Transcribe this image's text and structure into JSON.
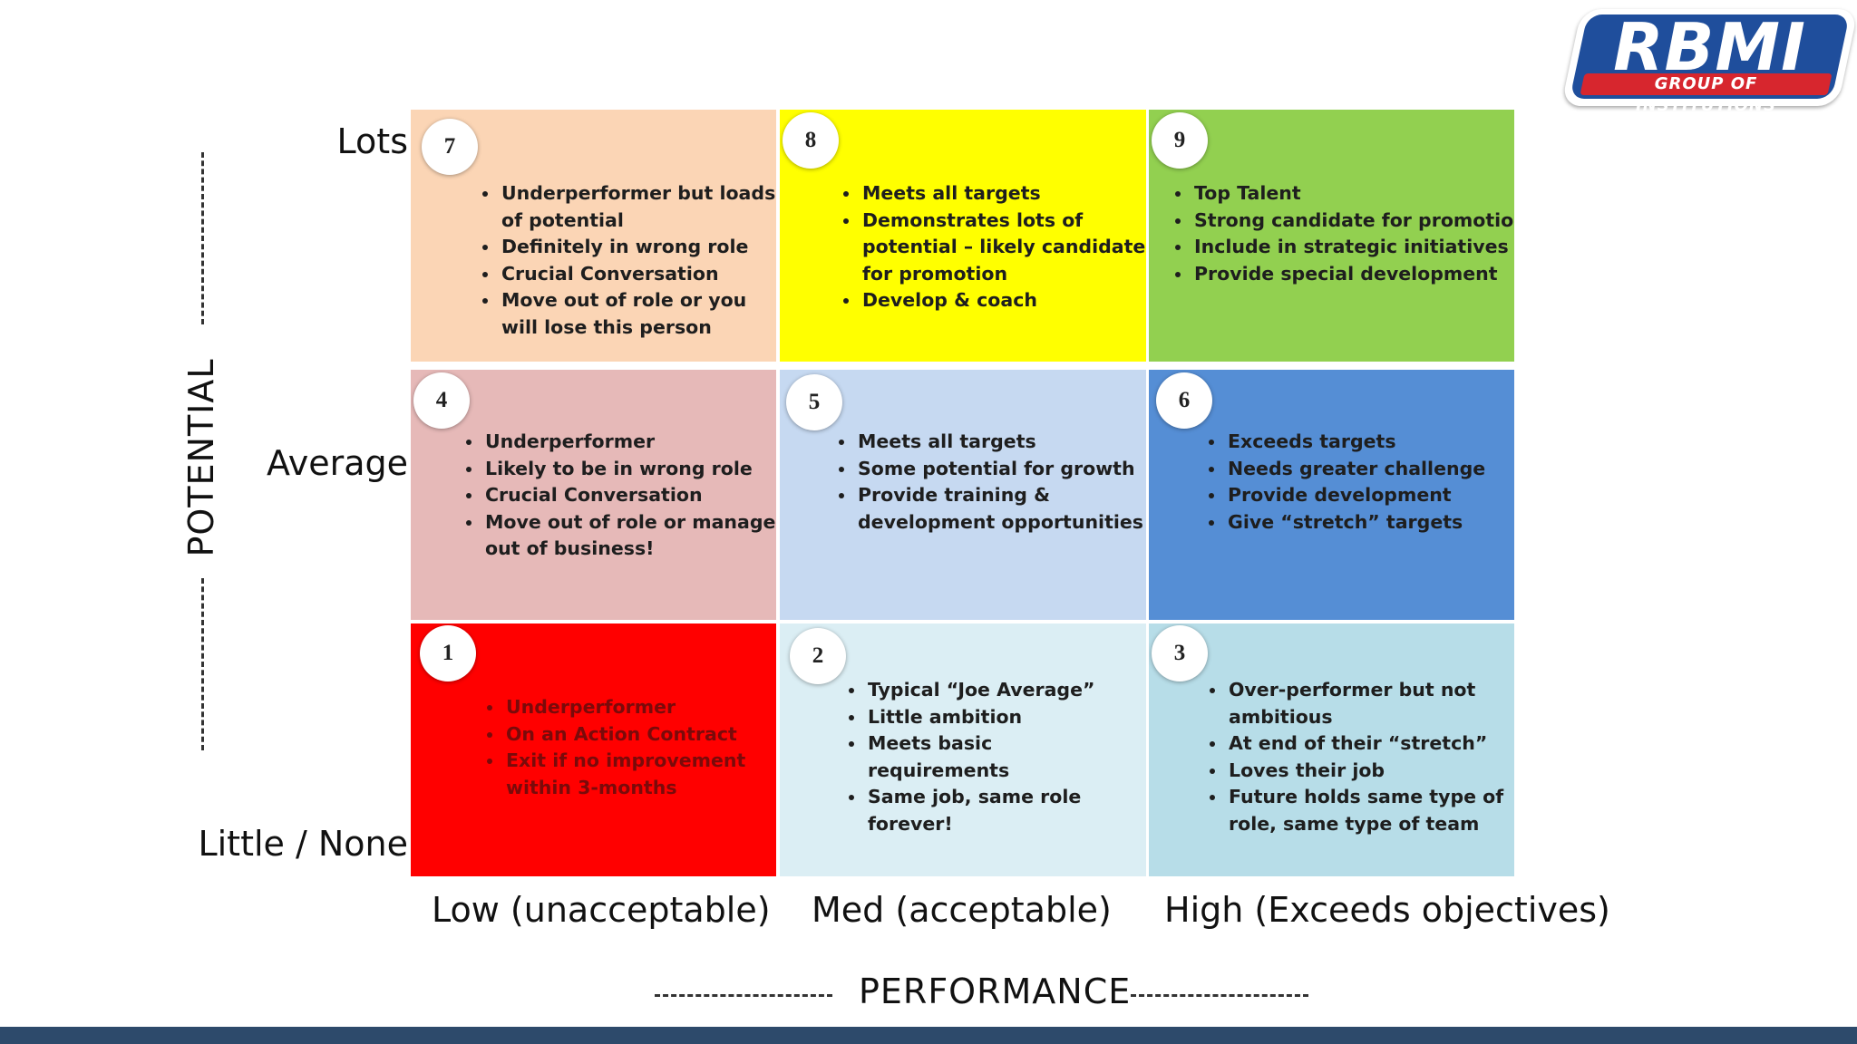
{
  "logo": {
    "title": "RBMI",
    "subtitle": "GROUP OF INSTITUTIONS"
  },
  "axes": {
    "y_title": "POTENTIAL",
    "x_title": "PERFORMANCE",
    "y_levels": [
      "Lots",
      "Average",
      "Little / None"
    ],
    "x_levels": [
      "Low (unacceptable)",
      "Med (acceptable)",
      "High (Exceeds objectives)"
    ]
  },
  "cells": [
    {
      "number": "7",
      "color": "#fbd5b5",
      "text_color": "#1e1e1e",
      "bullets": [
        "Underperformer but loads of potential",
        "Definitely in wrong role",
        "Crucial Conversation",
        "Move out of role or you will lose this person"
      ]
    },
    {
      "number": "8",
      "color": "#ffff00",
      "text_color": "#1e1e1e",
      "bullets": [
        "Meets all targets",
        "Demonstrates lots of potential – likely candidate for promotion",
        "Develop & coach"
      ]
    },
    {
      "number": "9",
      "color": "#92d050",
      "text_color": "#1e1e1e",
      "bullets": [
        "Top Talent",
        "Strong candidate for promotion",
        "Include in strategic initiatives",
        "Provide special development"
      ]
    },
    {
      "number": "4",
      "color": "#e6b9b8",
      "text_color": "#1e1e1e",
      "bullets": [
        "Underperformer",
        "Likely to be in wrong role",
        "Crucial Conversation",
        "Move out of role or manage out of business!"
      ]
    },
    {
      "number": "5",
      "color": "#c6d9f1",
      "text_color": "#1e1e1e",
      "bullets": [
        "Meets all targets",
        "Some potential for growth",
        "Provide training & development opportunities"
      ]
    },
    {
      "number": "6",
      "color": "#558ed5",
      "text_color": "#1e1e1e",
      "bullets": [
        "Exceeds targets",
        "Needs greater challenge",
        "Provide development",
        "Give “stretch” targets"
      ]
    },
    {
      "number": "1",
      "color": "#ff0000",
      "text_color": "#7a0a0a",
      "bullets": [
        "Underperformer",
        "On an Action Contract",
        "Exit if no improvement within 3-months"
      ]
    },
    {
      "number": "2",
      "color": "#dbeef4",
      "text_color": "#1e1e1e",
      "bullets": [
        "Typical “Joe Average”",
        "Little ambition",
        "Meets basic requirements",
        "Same job, same role forever!"
      ]
    },
    {
      "number": "3",
      "color": "#b7dde8",
      "text_color": "#1e1e1e",
      "bullets": [
        "Over-performer but not ambitious",
        "At end of their “stretch”",
        "Loves their job",
        "Future holds same type of role, same type of team"
      ]
    }
  ]
}
